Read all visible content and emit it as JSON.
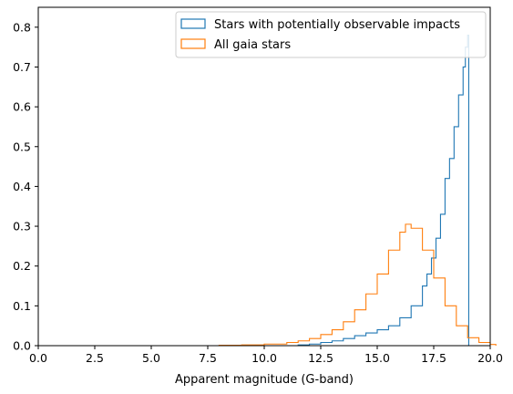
{
  "chart_data": {
    "type": "histogram-step",
    "xlabel": "Apparent magnitude (G-band)",
    "ylabel": "",
    "xlim": [
      0.0,
      20.0
    ],
    "ylim": [
      0.0,
      0.85
    ],
    "x_ticks": [
      "0.0",
      "2.5",
      "5.0",
      "7.5",
      "10.0",
      "12.5",
      "15.0",
      "17.5",
      "20.0"
    ],
    "y_ticks": [
      "0.0",
      "0.1",
      "0.2",
      "0.3",
      "0.4",
      "0.5",
      "0.6",
      "0.7",
      "0.8"
    ],
    "legend_position": "top-right",
    "series": [
      {
        "name": "Stars with potentially observable impacts",
        "color": "#1f77b4",
        "x": [
          11.0,
          11.5,
          12.0,
          12.5,
          13.0,
          13.5,
          14.0,
          14.5,
          15.0,
          15.5,
          16.0,
          16.5,
          17.0,
          17.2,
          17.4,
          17.6,
          17.8,
          18.0,
          18.2,
          18.4,
          18.6,
          18.8,
          18.9,
          19.0
        ],
        "y": [
          0.0,
          0.002,
          0.004,
          0.008,
          0.012,
          0.018,
          0.025,
          0.032,
          0.04,
          0.05,
          0.07,
          0.1,
          0.15,
          0.18,
          0.22,
          0.27,
          0.33,
          0.42,
          0.47,
          0.55,
          0.63,
          0.7,
          0.75,
          0.78
        ]
      },
      {
        "name": "All gaia stars",
        "color": "#ff7f0e",
        "x": [
          7.5,
          8.0,
          9.0,
          10.0,
          11.0,
          11.5,
          12.0,
          12.5,
          13.0,
          13.5,
          14.0,
          14.5,
          15.0,
          15.5,
          16.0,
          16.25,
          16.5,
          17.0,
          17.5,
          18.0,
          18.5,
          19.0,
          19.5,
          20.0
        ],
        "y": [
          0.0,
          0.001,
          0.002,
          0.004,
          0.008,
          0.012,
          0.018,
          0.028,
          0.04,
          0.06,
          0.09,
          0.13,
          0.18,
          0.24,
          0.285,
          0.305,
          0.295,
          0.24,
          0.17,
          0.1,
          0.05,
          0.02,
          0.008,
          0.003
        ]
      }
    ]
  }
}
